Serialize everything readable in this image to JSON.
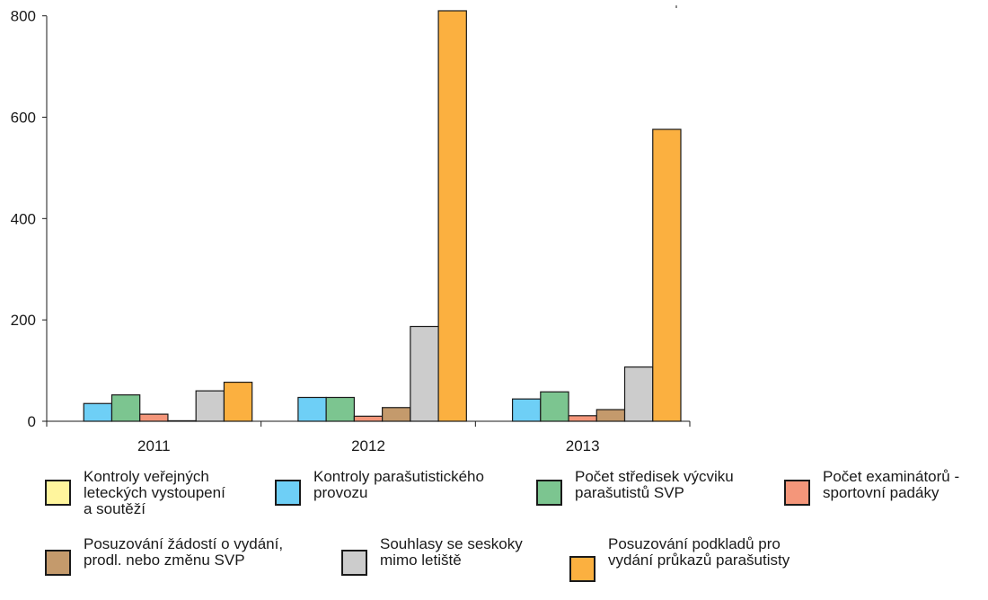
{
  "chart_data": {
    "type": "bar",
    "categories": [
      "2011",
      "2012",
      "2013"
    ],
    "yticks": [
      0,
      200,
      400,
      600,
      800
    ],
    "ylim": [
      0,
      810
    ],
    "grid": false,
    "legend_position": "bottom",
    "series": [
      {
        "name": "Kontroly veřejných\nleteckých vystoupení\na soutěží",
        "color": "#FFF59D",
        "values": [
          0,
          0,
          0
        ]
      },
      {
        "name": "Kontroly parašutistického\nprovozu",
        "color": "#6ECFF6",
        "values": [
          35,
          47,
          44
        ]
      },
      {
        "name": "Počet středisek výcviku\nparašutistů SVP",
        "color": "#7CC590",
        "values": [
          52,
          47,
          58
        ]
      },
      {
        "name": "Počet examinátorů -\nsportovní padáky",
        "color": "#F4967A",
        "values": [
          14,
          10,
          11
        ]
      },
      {
        "name": "Posuzování žádostí o vydání,\nprodl. nebo změnu SVP",
        "color": "#C49A6C",
        "values": [
          1,
          27,
          23
        ]
      },
      {
        "name": "Souhlasy se seskoky\nmimo letiště",
        "color": "#CCCCCC",
        "values": [
          60,
          187,
          107
        ]
      },
      {
        "name": "Posuzování podkladů pro\nvydání průkazů parašutisty",
        "color": "#FBB040",
        "values": [
          77,
          810,
          576
        ]
      }
    ]
  }
}
